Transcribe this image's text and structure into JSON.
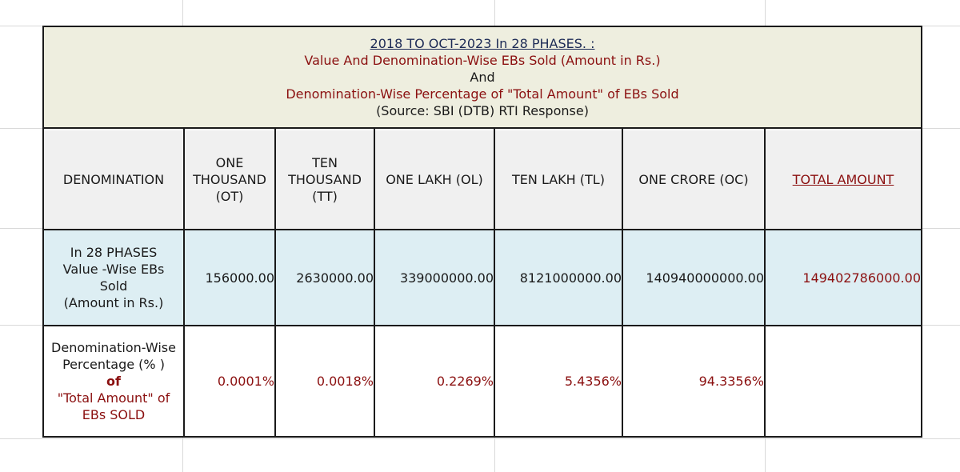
{
  "title": {
    "line1": "2018  TO OCT-2023 In 28 PHASES. :",
    "line2": "Value And Denomination-Wise  EBs Sold  (Amount in Rs.)",
    "line3": "And",
    "line4": "Denomination-Wise  Percentage of \"Total Amount\" of EBs Sold",
    "line5": "(Source: SBI (DTB) RTI Response)"
  },
  "header": {
    "denomination": "DENOMINATION",
    "ot": [
      "ONE",
      "THOUSAND",
      "(OT)"
    ],
    "tt": [
      "TEN",
      "THOUSAND",
      "(TT)"
    ],
    "ol": "ONE LAKH  (OL)",
    "tl": "TEN LAKH  (TL)",
    "oc": "ONE CRORE  (OC)",
    "total": "TOTAL AMOUNT"
  },
  "value_row": {
    "label": [
      "In 28 PHASES",
      "Value -Wise  EBs",
      "Sold",
      "(Amount in Rs.)"
    ],
    "ot": "156000.00",
    "tt": "2630000.00",
    "ol": "339000000.00",
    "tl": "8121000000.00",
    "oc": "140940000000.00",
    "total": "149402786000.00"
  },
  "percent_row": {
    "label_a": "Denomination-Wise",
    "label_b": "Percentage (% )",
    "label_c": "of",
    "label_d": "\"Total Amount\" of",
    "label_e": "EBs SOLD",
    "ot": "0.0001%",
    "tt": "0.0018%",
    "ol": "0.2269%",
    "tl": "5.4356%",
    "oc": "94.3356%",
    "total": ""
  }
}
